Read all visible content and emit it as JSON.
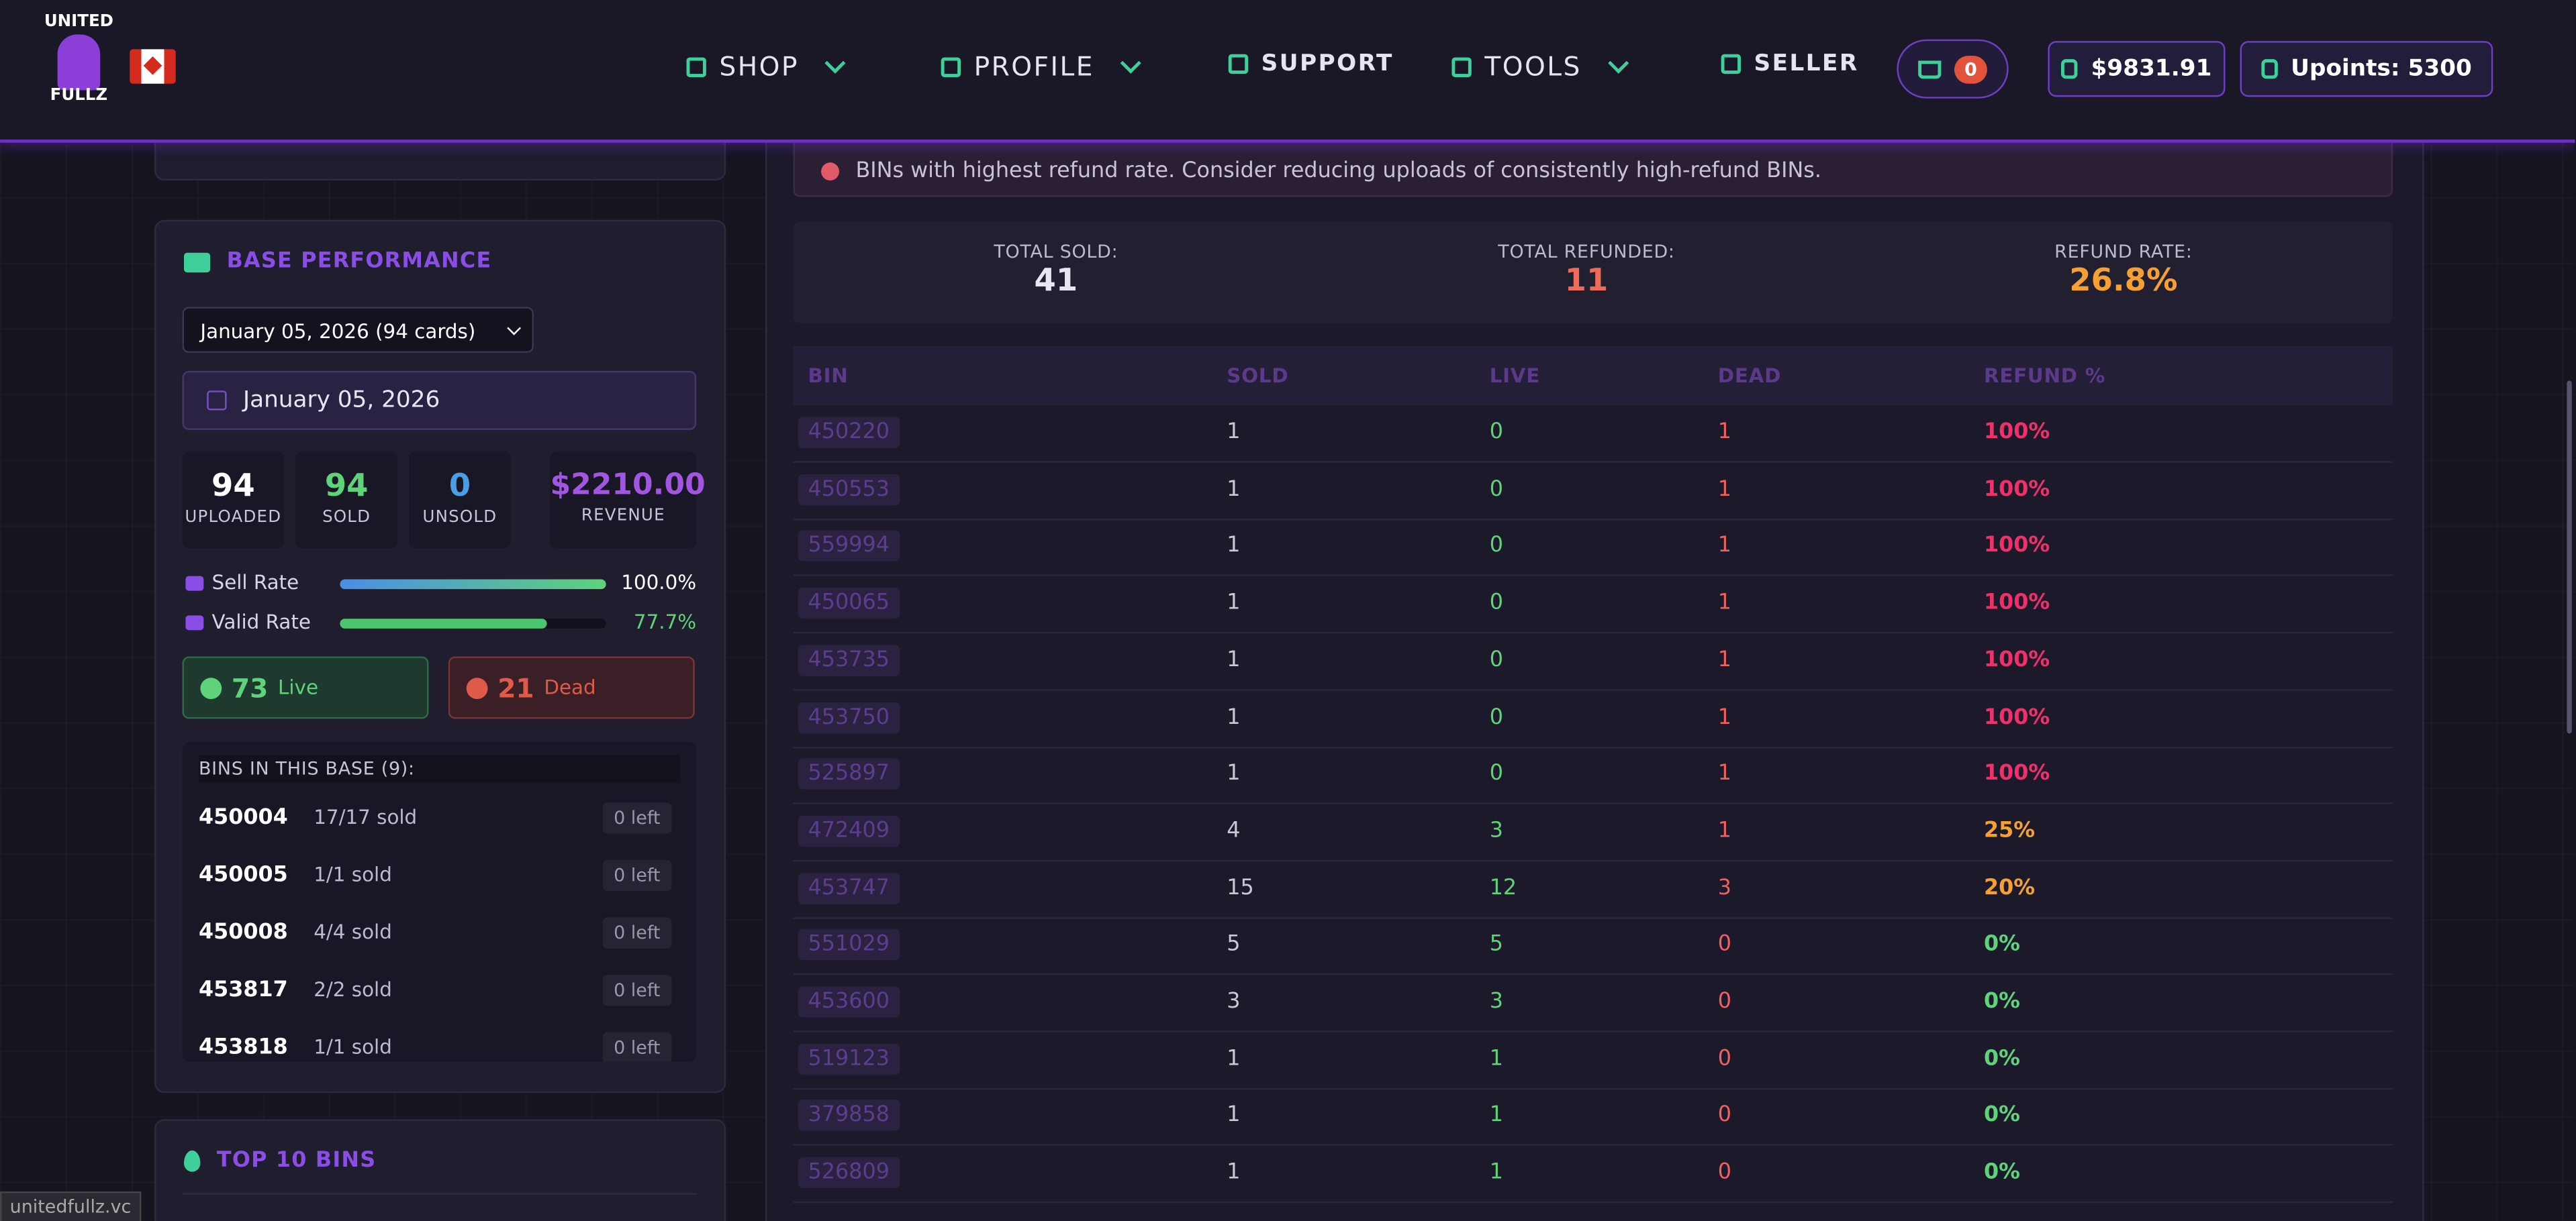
{
  "header": {
    "logo_top": "UNITED",
    "logo_bottom": "FULLZ",
    "nav": [
      "SHOP",
      "PROFILE",
      "SUPPORT",
      "TOOLS",
      "SELLER"
    ],
    "cart_count": "0",
    "balance": "$9831.91",
    "upoints": "Upoints: 5300"
  },
  "base_performance": {
    "title": "BASE PERFORMANCE",
    "select": "January 05, 2026 (94 cards)",
    "date": "January 05, 2026",
    "stats": [
      {
        "value": "94",
        "label": "UPLOADED"
      },
      {
        "value": "94",
        "label": "SOLD"
      },
      {
        "value": "0",
        "label": "UNSOLD"
      },
      {
        "value": "$2210.00",
        "label": "REVENUE"
      }
    ],
    "rates": [
      {
        "label": "Sell Rate",
        "value": "100.0%"
      },
      {
        "label": "Valid Rate",
        "value": "77.7%"
      }
    ],
    "live": {
      "count": "73",
      "label": "Live"
    },
    "dead": {
      "count": "21",
      "label": "Dead"
    },
    "bins_title": "BINS IN THIS BASE (9):",
    "bins": [
      [
        "450004",
        "17/17 sold",
        "0 left"
      ],
      [
        "450005",
        "1/1 sold",
        "0 left"
      ],
      [
        "450008",
        "4/4 sold",
        "0 left"
      ],
      [
        "453817",
        "2/2 sold",
        "0 left"
      ],
      [
        "453818",
        "1/1 sold",
        "0 left"
      ]
    ]
  },
  "top_bins": {
    "title": "TOP 10 BINS"
  },
  "refunds": {
    "notice": "BINs with highest refund rate. Consider reducing uploads of consistently high-refund BINs.",
    "summary": [
      {
        "label": "TOTAL SOLD:",
        "value": "41"
      },
      {
        "label": "TOTAL REFUNDED:",
        "value": "11"
      },
      {
        "label": "REFUND RATE:",
        "value": "26.8%"
      }
    ],
    "table": {
      "headers": [
        "BIN",
        "SOLD",
        "LIVE",
        "DEAD",
        "REFUND %"
      ],
      "rows": [
        [
          "450220",
          "1",
          "0",
          "1",
          "100%"
        ],
        [
          "450553",
          "1",
          "0",
          "1",
          "100%"
        ],
        [
          "559994",
          "1",
          "0",
          "1",
          "100%"
        ],
        [
          "450065",
          "1",
          "0",
          "1",
          "100%"
        ],
        [
          "453735",
          "1",
          "0",
          "1",
          "100%"
        ],
        [
          "453750",
          "1",
          "0",
          "1",
          "100%"
        ],
        [
          "525897",
          "1",
          "0",
          "1",
          "100%"
        ],
        [
          "472409",
          "4",
          "3",
          "1",
          "25%"
        ],
        [
          "453747",
          "15",
          "12",
          "3",
          "20%"
        ],
        [
          "551029",
          "5",
          "5",
          "0",
          "0%"
        ],
        [
          "453600",
          "3",
          "3",
          "0",
          "0%"
        ],
        [
          "519123",
          "1",
          "1",
          "0",
          "0%"
        ],
        [
          "379858",
          "1",
          "1",
          "0",
          "0%"
        ],
        [
          "526809",
          "1",
          "1",
          "0",
          "0%"
        ]
      ]
    }
  },
  "status_bar": "unitedfullz.vc"
}
